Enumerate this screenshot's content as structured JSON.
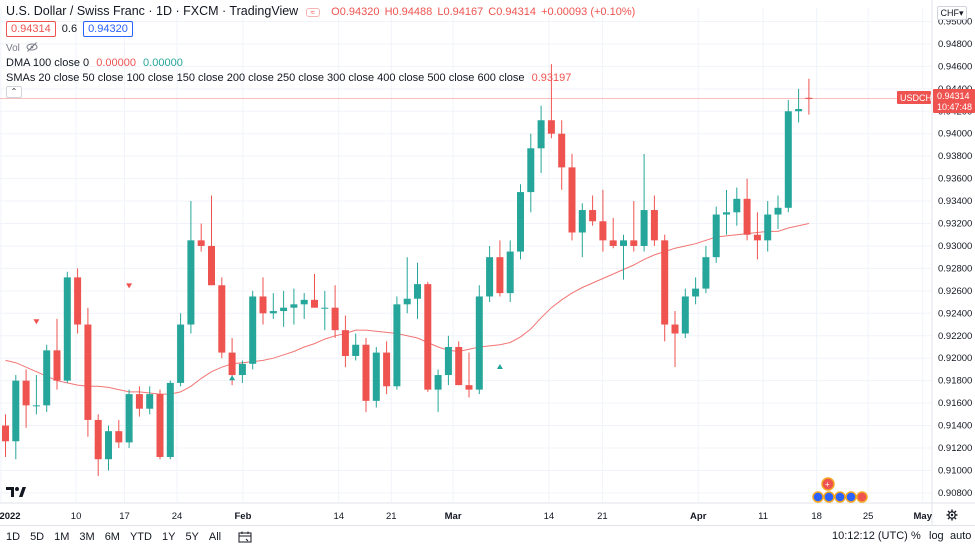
{
  "header": {
    "title": "U.S. Dollar / Swiss Franc · 1D · FXCM · TradingView",
    "ohlc": {
      "o": "O0.94320",
      "h": "H0.94488",
      "l": "L0.94167",
      "c": "C0.94314",
      "chg": "+0.00093 (+0.10%)"
    }
  },
  "quote": {
    "bid": "0.94314",
    "spread": "0.6",
    "ask": "0.94320"
  },
  "indicators": {
    "vol_label": "Vol",
    "dma_label": "DMA 100 close 0",
    "dma_val1": "0.00000",
    "dma_val2": "0.00000",
    "sma_label": "SMAs 20 close 50 close 100 close 150 close 200 close 250 close 300 close 400 close 500 close 600 close",
    "sma_val": "0.93197"
  },
  "currency_button": "CHF",
  "symbol_tag": {
    "symbol": "USDCHF",
    "price": "0.94314",
    "countdown": "10:47:48"
  },
  "bottom_bar": {
    "ranges": [
      "1D",
      "5D",
      "1M",
      "3M",
      "6M",
      "YTD",
      "1Y",
      "5Y",
      "All"
    ],
    "clock": "10:12:12 (UTC)",
    "percent": "%",
    "log": "log",
    "auto": "auto"
  },
  "colors": {
    "up": "#26a69a",
    "down": "#ef5350",
    "sma": "#ef5350",
    "grid": "#f0f3fa"
  },
  "chart_data": {
    "type": "candlestick",
    "ylim": [
      0.9071,
      0.9512
    ],
    "yticks": [
      "0.95000",
      "0.94800",
      "0.94600",
      "0.94400",
      "0.94200",
      "0.94000",
      "0.93800",
      "0.93600",
      "0.93400",
      "0.93200",
      "0.93000",
      "0.92800",
      "0.92600",
      "0.92400",
      "0.92200",
      "0.92000",
      "0.91800",
      "0.91600",
      "0.91400",
      "0.91200",
      "0.91000",
      "0.90800"
    ],
    "xticks": [
      {
        "label": "2022",
        "major": true
      },
      {
        "label": "10",
        "major": false
      },
      {
        "label": "17",
        "major": false
      },
      {
        "label": "24",
        "major": false
      },
      {
        "label": "Feb",
        "major": true
      },
      {
        "label": "14",
        "major": false
      },
      {
        "label": "21",
        "major": false
      },
      {
        "label": "Mar",
        "major": true
      },
      {
        "label": "14",
        "major": false
      },
      {
        "label": "21",
        "major": false
      },
      {
        "label": "Apr",
        "major": true
      },
      {
        "label": "11",
        "major": false
      },
      {
        "label": "18",
        "major": false
      },
      {
        "label": "25",
        "major": false
      },
      {
        "label": "May",
        "major": true
      }
    ],
    "candles": [
      {
        "o": 0.914,
        "h": 0.915,
        "l": 0.9112,
        "c": 0.9126
      },
      {
        "o": 0.9126,
        "h": 0.9185,
        "l": 0.911,
        "c": 0.918
      },
      {
        "o": 0.918,
        "h": 0.919,
        "l": 0.9138,
        "c": 0.9158
      },
      {
        "o": 0.9158,
        "h": 0.9185,
        "l": 0.915,
        "c": 0.9158
      },
      {
        "o": 0.9158,
        "h": 0.9212,
        "l": 0.9152,
        "c": 0.9207
      },
      {
        "o": 0.9207,
        "h": 0.9235,
        "l": 0.9172,
        "c": 0.918
      },
      {
        "o": 0.918,
        "h": 0.9277,
        "l": 0.9178,
        "c": 0.9272
      },
      {
        "o": 0.9272,
        "h": 0.928,
        "l": 0.9222,
        "c": 0.923
      },
      {
        "o": 0.923,
        "h": 0.9245,
        "l": 0.913,
        "c": 0.9145
      },
      {
        "o": 0.9145,
        "h": 0.915,
        "l": 0.9095,
        "c": 0.911
      },
      {
        "o": 0.911,
        "h": 0.914,
        "l": 0.91,
        "c": 0.9135
      },
      {
        "o": 0.9135,
        "h": 0.9145,
        "l": 0.912,
        "c": 0.9125
      },
      {
        "o": 0.9125,
        "h": 0.9172,
        "l": 0.912,
        "c": 0.9168
      },
      {
        "o": 0.9168,
        "h": 0.9175,
        "l": 0.9148,
        "c": 0.9155
      },
      {
        "o": 0.9155,
        "h": 0.9175,
        "l": 0.915,
        "c": 0.9168
      },
      {
        "o": 0.9168,
        "h": 0.9172,
        "l": 0.911,
        "c": 0.9112
      },
      {
        "o": 0.9112,
        "h": 0.918,
        "l": 0.911,
        "c": 0.9178
      },
      {
        "o": 0.9178,
        "h": 0.924,
        "l": 0.9175,
        "c": 0.923
      },
      {
        "o": 0.923,
        "h": 0.934,
        "l": 0.9222,
        "c": 0.9305
      },
      {
        "o": 0.9305,
        "h": 0.932,
        "l": 0.9295,
        "c": 0.93
      },
      {
        "o": 0.93,
        "h": 0.9345,
        "l": 0.9265,
        "c": 0.9265
      },
      {
        "o": 0.9265,
        "h": 0.9272,
        "l": 0.92,
        "c": 0.9205
      },
      {
        "o": 0.9205,
        "h": 0.9218,
        "l": 0.9176,
        "c": 0.9185
      },
      {
        "o": 0.9185,
        "h": 0.9198,
        "l": 0.9178,
        "c": 0.9195
      },
      {
        "o": 0.9195,
        "h": 0.926,
        "l": 0.919,
        "c": 0.9255
      },
      {
        "o": 0.9255,
        "h": 0.9272,
        "l": 0.923,
        "c": 0.924
      },
      {
        "o": 0.924,
        "h": 0.9258,
        "l": 0.9235,
        "c": 0.9242
      },
      {
        "o": 0.9242,
        "h": 0.926,
        "l": 0.9228,
        "c": 0.9245
      },
      {
        "o": 0.9245,
        "h": 0.9262,
        "l": 0.923,
        "c": 0.9248
      },
      {
        "o": 0.9248,
        "h": 0.9258,
        "l": 0.9235,
        "c": 0.9252
      },
      {
        "o": 0.9252,
        "h": 0.9275,
        "l": 0.9245,
        "c": 0.9245
      },
      {
        "o": 0.9245,
        "h": 0.926,
        "l": 0.9225,
        "c": 0.9245
      },
      {
        "o": 0.9245,
        "h": 0.9265,
        "l": 0.9218,
        "c": 0.9225
      },
      {
        "o": 0.9225,
        "h": 0.9238,
        "l": 0.9192,
        "c": 0.9202
      },
      {
        "o": 0.9202,
        "h": 0.9222,
        "l": 0.9198,
        "c": 0.9212
      },
      {
        "o": 0.9212,
        "h": 0.9218,
        "l": 0.9152,
        "c": 0.9162
      },
      {
        "o": 0.9162,
        "h": 0.921,
        "l": 0.9156,
        "c": 0.9205
      },
      {
        "o": 0.9205,
        "h": 0.9215,
        "l": 0.9168,
        "c": 0.9175
      },
      {
        "o": 0.9175,
        "h": 0.9255,
        "l": 0.9172,
        "c": 0.9248
      },
      {
        "o": 0.9248,
        "h": 0.929,
        "l": 0.924,
        "c": 0.9253
      },
      {
        "o": 0.9253,
        "h": 0.9285,
        "l": 0.9235,
        "c": 0.9266
      },
      {
        "o": 0.9266,
        "h": 0.9268,
        "l": 0.917,
        "c": 0.9172
      },
      {
        "o": 0.9172,
        "h": 0.919,
        "l": 0.9152,
        "c": 0.9185
      },
      {
        "o": 0.9185,
        "h": 0.922,
        "l": 0.9176,
        "c": 0.921
      },
      {
        "o": 0.921,
        "h": 0.9215,
        "l": 0.9176,
        "c": 0.9176
      },
      {
        "o": 0.9176,
        "h": 0.9205,
        "l": 0.9165,
        "c": 0.9172
      },
      {
        "o": 0.9172,
        "h": 0.9265,
        "l": 0.9168,
        "c": 0.9255
      },
      {
        "o": 0.9255,
        "h": 0.93,
        "l": 0.925,
        "c": 0.929
      },
      {
        "o": 0.929,
        "h": 0.9305,
        "l": 0.9255,
        "c": 0.9258
      },
      {
        "o": 0.9258,
        "h": 0.9305,
        "l": 0.925,
        "c": 0.9295
      },
      {
        "o": 0.9295,
        "h": 0.9355,
        "l": 0.9288,
        "c": 0.9348
      },
      {
        "o": 0.9348,
        "h": 0.94,
        "l": 0.933,
        "c": 0.9387
      },
      {
        "o": 0.9387,
        "h": 0.9425,
        "l": 0.9365,
        "c": 0.9412
      },
      {
        "o": 0.9412,
        "h": 0.9462,
        "l": 0.9396,
        "c": 0.94
      },
      {
        "o": 0.94,
        "h": 0.9412,
        "l": 0.935,
        "c": 0.937
      },
      {
        "o": 0.937,
        "h": 0.9382,
        "l": 0.9305,
        "c": 0.9312
      },
      {
        "o": 0.9312,
        "h": 0.9338,
        "l": 0.929,
        "c": 0.9332
      },
      {
        "o": 0.9332,
        "h": 0.9345,
        "l": 0.9318,
        "c": 0.9322
      },
      {
        "o": 0.9322,
        "h": 0.935,
        "l": 0.9295,
        "c": 0.9305
      },
      {
        "o": 0.9305,
        "h": 0.9325,
        "l": 0.9298,
        "c": 0.93
      },
      {
        "o": 0.93,
        "h": 0.931,
        "l": 0.927,
        "c": 0.9305
      },
      {
        "o": 0.9305,
        "h": 0.934,
        "l": 0.9295,
        "c": 0.93
      },
      {
        "o": 0.93,
        "h": 0.9382,
        "l": 0.9295,
        "c": 0.9332
      },
      {
        "o": 0.9332,
        "h": 0.9345,
        "l": 0.93,
        "c": 0.9305
      },
      {
        "o": 0.9305,
        "h": 0.931,
        "l": 0.9215,
        "c": 0.923
      },
      {
        "o": 0.923,
        "h": 0.9242,
        "l": 0.9192,
        "c": 0.9222
      },
      {
        "o": 0.9222,
        "h": 0.9262,
        "l": 0.9218,
        "c": 0.9255
      },
      {
        "o": 0.9255,
        "h": 0.9272,
        "l": 0.9248,
        "c": 0.9262
      },
      {
        "o": 0.9262,
        "h": 0.93,
        "l": 0.9258,
        "c": 0.929
      },
      {
        "o": 0.929,
        "h": 0.9335,
        "l": 0.9285,
        "c": 0.9328
      },
      {
        "o": 0.9328,
        "h": 0.935,
        "l": 0.931,
        "c": 0.933
      },
      {
        "o": 0.933,
        "h": 0.9352,
        "l": 0.9318,
        "c": 0.9342
      },
      {
        "o": 0.9342,
        "h": 0.936,
        "l": 0.9305,
        "c": 0.931
      },
      {
        "o": 0.931,
        "h": 0.933,
        "l": 0.9288,
        "c": 0.9305
      },
      {
        "o": 0.9305,
        "h": 0.934,
        "l": 0.9295,
        "c": 0.9328
      },
      {
        "o": 0.9328,
        "h": 0.9345,
        "l": 0.9315,
        "c": 0.9334
      },
      {
        "o": 0.9334,
        "h": 0.943,
        "l": 0.933,
        "c": 0.942
      },
      {
        "o": 0.942,
        "h": 0.944,
        "l": 0.941,
        "c": 0.9422
      },
      {
        "o": 0.9432,
        "h": 0.9449,
        "l": 0.9417,
        "c": 0.9431
      }
    ],
    "sma": [
      0.9198,
      0.9196,
      0.9192,
      0.9188,
      0.9184,
      0.918,
      0.9178,
      0.9176,
      0.9175,
      0.9175,
      0.9174,
      0.9172,
      0.917,
      0.917,
      0.9169,
      0.9168,
      0.9168,
      0.917,
      0.9175,
      0.9182,
      0.9188,
      0.9192,
      0.9195,
      0.9196,
      0.9197,
      0.9198,
      0.92,
      0.9203,
      0.9206,
      0.921,
      0.9213,
      0.9217,
      0.922,
      0.9222,
      0.9225,
      0.9225,
      0.9224,
      0.9223,
      0.9222,
      0.922,
      0.9218,
      0.9214,
      0.921,
      0.9207,
      0.9206,
      0.9208,
      0.921,
      0.9211,
      0.9212,
      0.9214,
      0.9219,
      0.9226,
      0.9236,
      0.9245,
      0.9252,
      0.9258,
      0.9263,
      0.9267,
      0.9271,
      0.9275,
      0.9279,
      0.9283,
      0.9288,
      0.9292,
      0.9295,
      0.9298,
      0.93,
      0.9302,
      0.9305,
      0.9308,
      0.9309,
      0.931,
      0.9311,
      0.9312,
      0.9313,
      0.9313,
      0.9316,
      0.9318,
      0.932
    ],
    "markers": [
      {
        "type": "down",
        "index": 3,
        "price": 0.9232
      },
      {
        "type": "down",
        "index": 12,
        "price": 0.9264
      },
      {
        "type": "up",
        "index": 22,
        "price": 0.9183
      },
      {
        "type": "up",
        "index": 48,
        "price": 0.9193
      }
    ],
    "last_price": 0.94314
  }
}
